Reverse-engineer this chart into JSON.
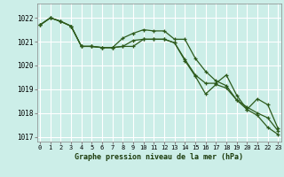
{
  "title": "Graphe pression niveau de la mer (hPa)",
  "bg_color": "#cceee8",
  "grid_color": "#ffffff",
  "line_color": "#2d5a1b",
  "xlim": [
    -0.3,
    23.3
  ],
  "ylim": [
    1016.8,
    1022.6
  ],
  "yticks": [
    1017,
    1018,
    1019,
    1020,
    1021,
    1022
  ],
  "xticks": [
    0,
    1,
    2,
    3,
    4,
    5,
    6,
    7,
    8,
    9,
    10,
    11,
    12,
    13,
    14,
    15,
    16,
    17,
    18,
    19,
    20,
    21,
    22,
    23
  ],
  "series": [
    {
      "x": [
        0,
        1,
        2,
        3,
        4,
        5,
        6,
        7,
        8,
        9,
        10,
        11,
        12,
        13,
        14,
        15,
        16,
        17,
        18,
        19,
        20,
        21,
        22,
        23
      ],
      "y": [
        1021.7,
        1022.0,
        1021.85,
        1021.65,
        1020.8,
        1020.8,
        1020.75,
        1020.75,
        1021.15,
        1021.35,
        1021.5,
        1021.45,
        1021.45,
        1021.1,
        1021.1,
        1020.3,
        1019.75,
        1019.35,
        1019.15,
        1018.55,
        1018.25,
        1018.0,
        1017.8,
        1017.25
      ]
    },
    {
      "x": [
        0,
        1,
        2,
        3,
        4,
        5,
        6,
        7,
        8,
        9,
        10,
        11,
        12,
        13,
        14,
        15,
        16,
        17,
        18,
        19,
        20,
        21,
        22,
        23
      ],
      "y": [
        1021.7,
        1022.0,
        1021.85,
        1021.65,
        1020.8,
        1020.8,
        1020.75,
        1020.75,
        1020.8,
        1021.05,
        1021.1,
        1021.1,
        1021.1,
        1020.95,
        1020.25,
        1019.6,
        1019.25,
        1019.25,
        1019.6,
        1018.75,
        1018.15,
        1018.6,
        1018.35,
        1017.35
      ]
    },
    {
      "x": [
        0,
        1,
        2,
        3,
        4,
        5,
        6,
        7,
        8,
        9,
        10,
        11,
        12,
        13,
        14,
        15,
        16,
        17,
        18,
        19,
        20,
        21,
        22,
        23
      ],
      "y": [
        1021.7,
        1022.0,
        1021.85,
        1021.65,
        1020.8,
        1020.8,
        1020.75,
        1020.75,
        1020.8,
        1020.8,
        1021.1,
        1021.1,
        1021.1,
        1020.95,
        1020.2,
        1019.55,
        1018.8,
        1019.2,
        1019.05,
        1018.55,
        1018.15,
        1017.9,
        1017.4,
        1017.1
      ]
    }
  ]
}
